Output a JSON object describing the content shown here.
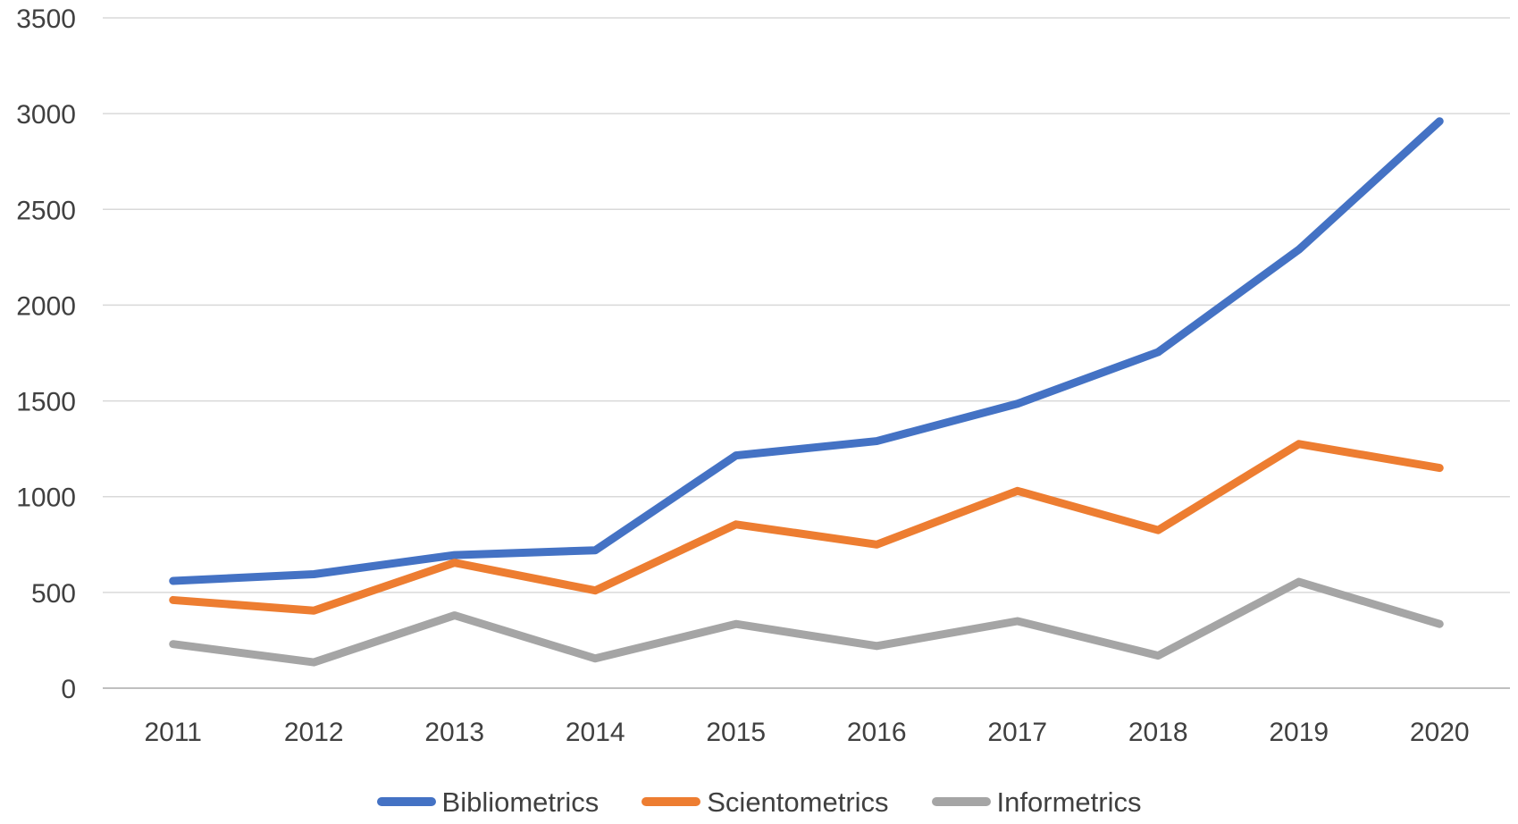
{
  "chart_data": {
    "type": "line",
    "categories": [
      "2011",
      "2012",
      "2013",
      "2014",
      "2015",
      "2016",
      "2017",
      "2018",
      "2019",
      "2020"
    ],
    "series": [
      {
        "name": "Bibliometrics",
        "color": "#4472C4",
        "values": [
          560,
          595,
          695,
          720,
          1215,
          1290,
          1485,
          1755,
          2290,
          2960
        ]
      },
      {
        "name": "Scientometrics",
        "color": "#ED7D31",
        "values": [
          460,
          405,
          655,
          510,
          855,
          750,
          1030,
          825,
          1275,
          1150
        ]
      },
      {
        "name": "Informetrics",
        "color": "#A5A5A5",
        "values": [
          230,
          135,
          380,
          155,
          335,
          220,
          350,
          170,
          555,
          335
        ]
      }
    ],
    "yticks": [
      0,
      500,
      1000,
      1500,
      2000,
      2500,
      3000,
      3500
    ],
    "ylim": [
      0,
      3500
    ],
    "grid": true,
    "legend_position": "bottom",
    "grid_color": "#D9D9D9",
    "axis_line_color": "#BFBFBF",
    "text_color": "#404040"
  }
}
